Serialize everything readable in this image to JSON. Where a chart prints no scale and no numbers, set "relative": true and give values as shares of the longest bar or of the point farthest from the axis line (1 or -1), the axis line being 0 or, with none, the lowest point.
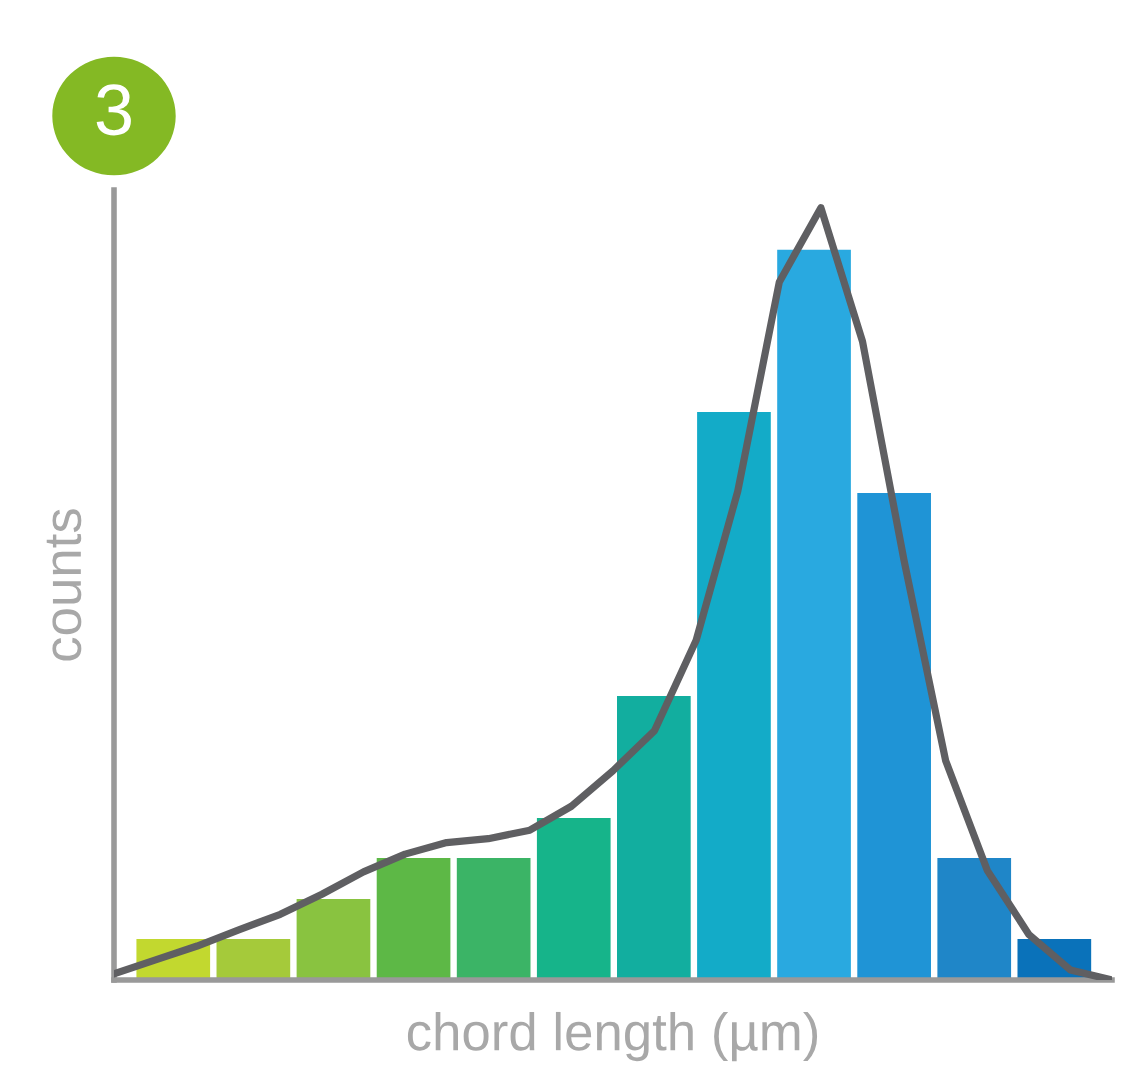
{
  "chart_data": [
    {
      "type": "bar",
      "relative": true,
      "xlabel": "chord length (µm)",
      "ylabel": "counts",
      "annotations": [
        "3"
      ],
      "categories": [
        null,
        null,
        null,
        null,
        null,
        null,
        null,
        null,
        null,
        null,
        null,
        null
      ],
      "values": [
        0.056,
        0.056,
        0.111,
        0.167,
        0.167,
        0.222,
        0.389,
        0.778,
        1.0,
        0.667,
        0.167,
        0.056
      ],
      "colors": [
        "#c2d82f",
        "#a5ca3a",
        "#89c340",
        "#5db846",
        "#3bb466",
        "#16b48a",
        "#12ae9f",
        "#13abc8",
        "#29a9e0",
        "#1f94d6",
        "#1f86c8",
        "#0a72ba"
      ]
    },
    {
      "type": "line",
      "relative": true,
      "color": "#5f5f62",
      "categories": [
        null,
        null,
        null,
        null,
        null,
        null,
        null,
        null,
        null,
        null,
        null,
        null,
        null,
        null,
        null,
        null,
        null,
        null,
        null,
        null,
        null,
        null,
        null,
        null,
        null
      ],
      "values": [
        0.008,
        0.026,
        0.044,
        0.065,
        0.085,
        0.111,
        0.14,
        0.163,
        0.178,
        0.183,
        0.194,
        0.225,
        0.271,
        0.323,
        0.44,
        0.633,
        0.904,
        1.0,
        0.827,
        0.543,
        0.284,
        0.142,
        0.059,
        0.013,
        0.0
      ]
    }
  ]
}
